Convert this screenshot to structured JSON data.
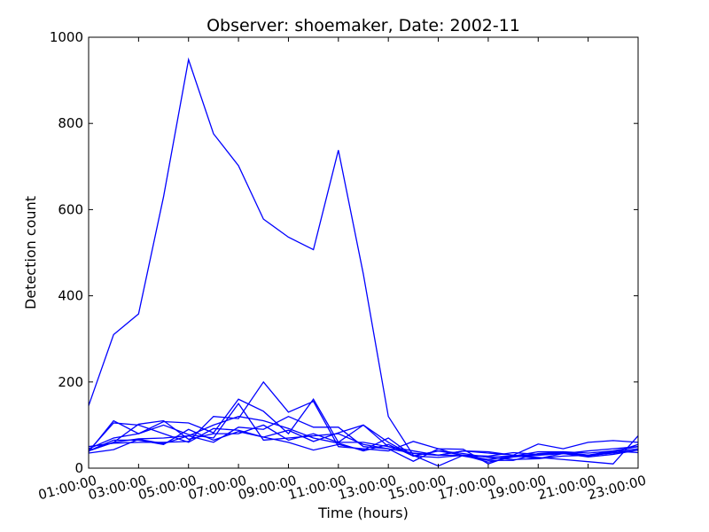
{
  "chart_data": {
    "type": "line",
    "title": "Observer: shoemaker, Date: 2002-11",
    "xlabel": "Time (hours)",
    "ylabel": "Detection count",
    "xlim": [
      1,
      23
    ],
    "ylim": [
      0,
      1000
    ],
    "grid": false,
    "line_color": "#0000ff",
    "x": [
      1,
      2,
      3,
      4,
      5,
      6,
      7,
      8,
      9,
      10,
      11,
      12,
      13,
      14,
      15,
      16,
      17,
      18,
      19,
      20,
      21,
      22,
      23
    ],
    "x_tick_values": [
      1,
      3,
      5,
      7,
      9,
      11,
      13,
      15,
      17,
      19,
      21,
      23
    ],
    "x_tick_labels": [
      "01:00:00",
      "03:00:00",
      "05:00:00",
      "07:00:00",
      "09:00:00",
      "11:00:00",
      "13:00:00",
      "15:00:00",
      "17:00:00",
      "19:00:00",
      "21:00:00",
      "23:00:00"
    ],
    "y_tick_values": [
      0,
      200,
      400,
      600,
      800,
      1000
    ],
    "y_tick_labels": [
      "0",
      "200",
      "400",
      "600",
      "800",
      "1000"
    ],
    "series": [
      {
        "values": [
          145,
          310,
          358,
          630,
          948,
          776,
          702,
          578,
          536,
          507,
          738,
          450,
          120,
          30,
          5,
          30,
          20,
          28,
          32,
          36,
          30,
          38,
          45
        ]
      },
      {
        "values": [
          38,
          110,
          80,
          100,
          78,
          70,
          150,
          65,
          70,
          75,
          80,
          55,
          45,
          35,
          30,
          40,
          35,
          30,
          25,
          20,
          15,
          10,
          75
        ]
      },
      {
        "values": [
          40,
          65,
          65,
          55,
          90,
          65,
          85,
          72,
          60,
          42,
          55,
          42,
          70,
          28,
          40,
          34,
          25,
          20,
          22,
          28,
          30,
          35,
          42
        ]
      },
      {
        "values": [
          45,
          70,
          80,
          108,
          105,
          82,
          160,
          132,
          80,
          160,
          60,
          100,
          50,
          40,
          30,
          40,
          38,
          30,
          22,
          34,
          40,
          45,
          50
        ]
      },
      {
        "values": [
          50,
          58,
          60,
          60,
          62,
          120,
          115,
          200,
          130,
          155,
          50,
          45,
          40,
          62,
          45,
          44,
          10,
          30,
          56,
          45,
          60,
          64,
          60
        ]
      },
      {
        "values": [
          35,
          43,
          67,
          57,
          75,
          60,
          95,
          90,
          120,
          95,
          95,
          50,
          45,
          16,
          45,
          28,
          18,
          18,
          34,
          38,
          35,
          40,
          50
        ]
      },
      {
        "values": [
          40,
          105,
          100,
          80,
          60,
          92,
          88,
          72,
          88,
          62,
          82,
          100,
          60,
          28,
          40,
          30,
          26,
          28,
          38,
          38,
          30,
          40,
          36
        ]
      },
      {
        "values": [
          40,
          60,
          102,
          110,
          67,
          80,
          80,
          100,
          65,
          80,
          60,
          60,
          50,
          34,
          30,
          30,
          14,
          26,
          30,
          34,
          28,
          36,
          55
        ]
      },
      {
        "values": [
          40,
          60,
          68,
          70,
          75,
          100,
          120,
          110,
          92,
          70,
          58,
          40,
          55,
          28,
          25,
          30,
          28,
          36,
          32,
          34,
          26,
          32,
          42
        ]
      }
    ]
  }
}
